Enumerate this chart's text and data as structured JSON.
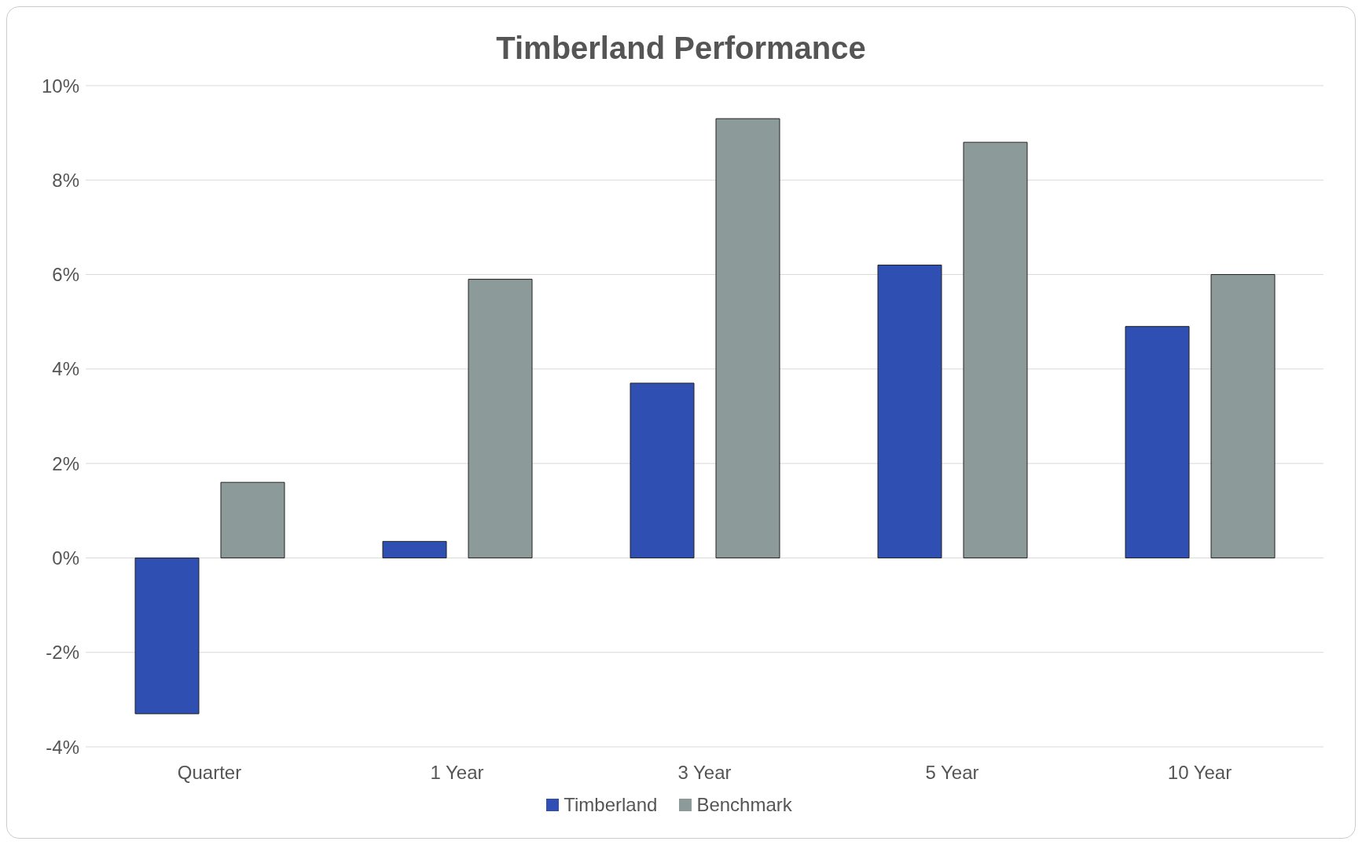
{
  "chart_data": {
    "type": "bar",
    "title": "Timberland Performance",
    "categories": [
      "Quarter",
      "1 Year",
      "3 Year",
      "5 Year",
      "10 Year"
    ],
    "series": [
      {
        "name": "Timberland",
        "color": "#2f4fb3",
        "values": [
          -3.3,
          0.35,
          3.7,
          6.2,
          4.9
        ]
      },
      {
        "name": "Benchmark",
        "color": "#8d9a9a",
        "values": [
          1.6,
          5.9,
          9.3,
          8.8,
          6.0
        ]
      }
    ],
    "ylim": [
      -4,
      10
    ],
    "yticks": [
      {
        "value": -4,
        "label": "-4%"
      },
      {
        "value": -2,
        "label": "-2%"
      },
      {
        "value": 0,
        "label": "0%"
      },
      {
        "value": 2,
        "label": "2%"
      },
      {
        "value": 4,
        "label": "4%"
      },
      {
        "value": 6,
        "label": "6%"
      },
      {
        "value": 8,
        "label": "8%"
      },
      {
        "value": 10,
        "label": "10%"
      }
    ],
    "grid": "y",
    "legend": "bottom"
  }
}
